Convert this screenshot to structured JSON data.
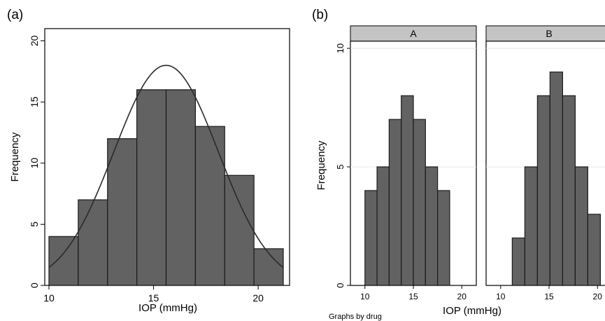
{
  "panel_labels": [
    "(a)",
    "(b)"
  ],
  "colors": {
    "bar_fill": "#626262",
    "bar_stroke": "#1a1a1a",
    "curve": "#2a2a2a",
    "strip": "#c4c4c4",
    "gridline": "#e6e6e6"
  },
  "chart_data": [
    {
      "type": "bar",
      "subtype": "histogram",
      "panel_label": "(a)",
      "xlabel": "IOP (mmHg)",
      "ylabel": "Frequency",
      "xlim": [
        9.8,
        21.5
      ],
      "ylim": [
        0,
        21
      ],
      "x_ticks": [
        10,
        15,
        20
      ],
      "y_ticks": [
        0,
        5,
        10,
        15,
        20
      ],
      "grid": false,
      "bins": [
        {
          "start": 10.0,
          "end": 11.4,
          "value": 4
        },
        {
          "start": 11.4,
          "end": 12.8,
          "value": 7
        },
        {
          "start": 12.8,
          "end": 14.2,
          "value": 12
        },
        {
          "start": 14.2,
          "end": 15.6,
          "value": 16
        },
        {
          "start": 15.6,
          "end": 17.0,
          "value": 16
        },
        {
          "start": 17.0,
          "end": 18.4,
          "value": 13
        },
        {
          "start": 18.4,
          "end": 19.8,
          "value": 9
        },
        {
          "start": 19.8,
          "end": 21.2,
          "value": 3
        }
      ],
      "overlay_curve": {
        "type": "normal",
        "mean": 15.6,
        "sd": 2.5,
        "peak": 18
      }
    },
    {
      "type": "bar",
      "subtype": "histogram",
      "panel_label": "(b)",
      "facet_by": "drug",
      "note": "Graphs by drug",
      "xlabel": "IOP (mmHg)",
      "ylabel": "Frequency",
      "xlim": [
        8.5,
        21.5
      ],
      "ylim": [
        0,
        10.3
      ],
      "x_ticks": [
        10,
        15,
        20
      ],
      "y_ticks": [
        0,
        5,
        10
      ],
      "grid": true,
      "facets": [
        {
          "name": "A",
          "bins": [
            {
              "start": 10.0,
              "end": 11.25,
              "value": 4
            },
            {
              "start": 11.25,
              "end": 12.5,
              "value": 5
            },
            {
              "start": 12.5,
              "end": 13.75,
              "value": 7
            },
            {
              "start": 13.75,
              "end": 15.0,
              "value": 8
            },
            {
              "start": 15.0,
              "end": 16.25,
              "value": 7
            },
            {
              "start": 16.25,
              "end": 17.5,
              "value": 5
            },
            {
              "start": 17.5,
              "end": 18.75,
              "value": 4
            }
          ]
        },
        {
          "name": "B",
          "bins": [
            {
              "start": 11.2,
              "end": 12.5,
              "value": 2
            },
            {
              "start": 12.5,
              "end": 13.8,
              "value": 5
            },
            {
              "start": 13.8,
              "end": 15.1,
              "value": 8
            },
            {
              "start": 15.1,
              "end": 16.4,
              "value": 9
            },
            {
              "start": 16.4,
              "end": 17.7,
              "value": 8
            },
            {
              "start": 17.7,
              "end": 19.0,
              "value": 5
            },
            {
              "start": 19.0,
              "end": 20.3,
              "value": 3
            }
          ]
        }
      ]
    }
  ]
}
